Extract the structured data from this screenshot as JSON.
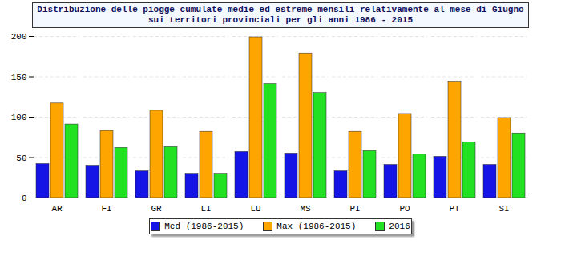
{
  "chart_data": {
    "type": "bar",
    "title": "Distribuzione delle piogge cumulate medie ed estreme mensili relativamente al mese di Giugno sui territori provinciali per gli anni 1986 - 2015",
    "categories": [
      "AR",
      "FI",
      "GR",
      "LI",
      "LU",
      "MS",
      "PI",
      "PO",
      "PT",
      "SI"
    ],
    "series": [
      {
        "name": "Med (1986-2015)",
        "color": "#1414e6",
        "values": [
          42,
          40,
          33,
          30,
          57,
          55,
          33,
          41,
          51,
          41
        ]
      },
      {
        "name": "Max (1986-2015)",
        "color": "#ffa500",
        "values": [
          117,
          83,
          108,
          82,
          199,
          179,
          82,
          104,
          144,
          99
        ]
      },
      {
        "name": "2016",
        "color": "#22e022",
        "values": [
          91,
          62,
          63,
          30,
          141,
          130,
          58,
          54,
          69,
          80
        ]
      }
    ],
    "ylim": [
      0,
      200
    ],
    "yticks": [
      0,
      50,
      100,
      150,
      200
    ],
    "grid": true,
    "legend": "bottom"
  }
}
